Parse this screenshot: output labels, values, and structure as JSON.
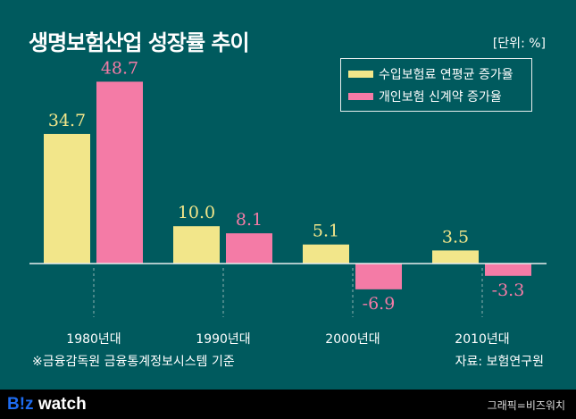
{
  "header": {
    "title": "생명보험산업 성장률 추이",
    "unit": "[단위: %]"
  },
  "chart_data": {
    "type": "bar",
    "title": "생명보험산업 성장률 추이",
    "categories": [
      "1980년대",
      "1990년대",
      "2000년대",
      "2010년대"
    ],
    "series": [
      {
        "name": "수입보험료 연평균 증가율",
        "values": [
          34.7,
          10.0,
          5.1,
          3.5
        ],
        "color": "#f2e68a",
        "labels": [
          "34.7",
          "10.0",
          "5.1",
          "3.5"
        ]
      },
      {
        "name": "개인보험 신계약 증가율",
        "values": [
          48.7,
          8.1,
          -6.9,
          -3.3
        ],
        "color": "#f47ba6",
        "labels": [
          "48.7",
          "8.1",
          "-6.9",
          "-3.3"
        ]
      }
    ],
    "legend": "top-right",
    "grid": false
  },
  "footer": {
    "note": "※금융감독원 금융통계정보시스템 기준",
    "source": "자료: 보험연구원",
    "logo_b": "B!z",
    "logo_w": " watch",
    "credit": "그래픽=비즈워치"
  }
}
